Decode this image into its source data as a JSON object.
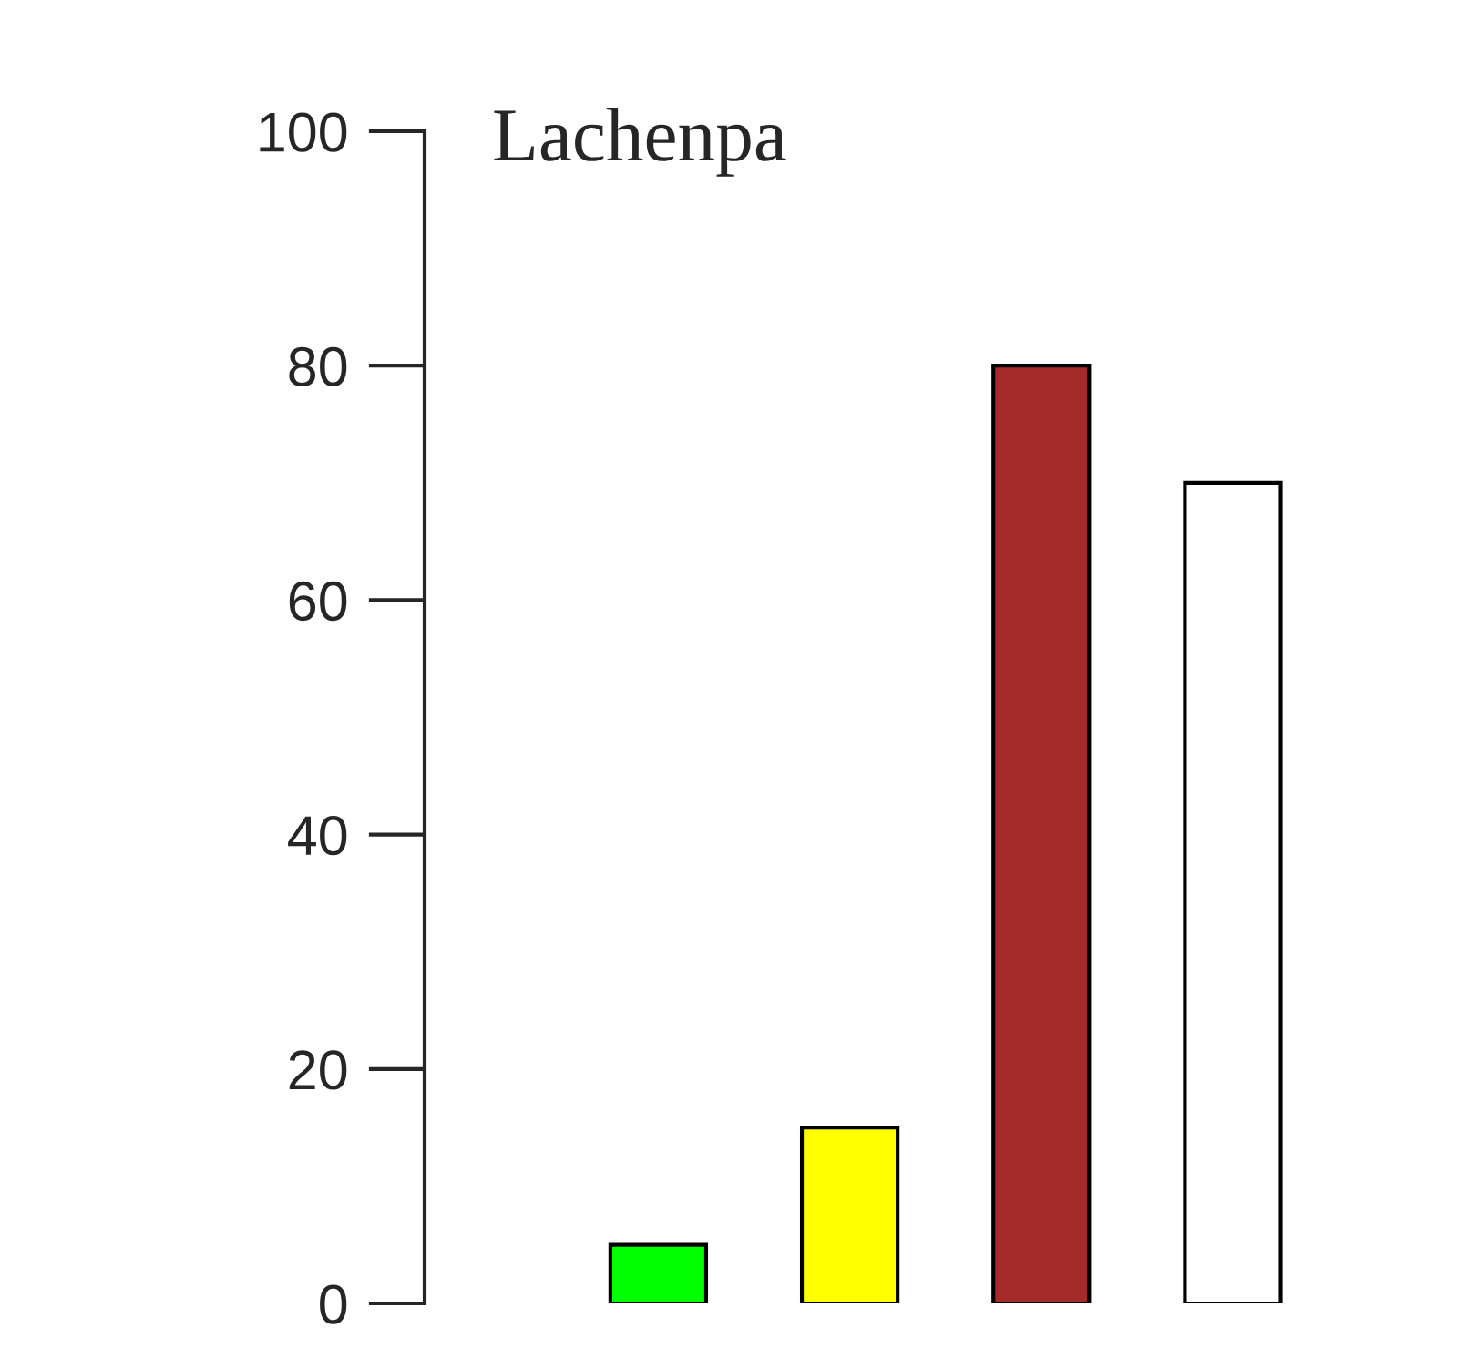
{
  "chart_data": {
    "type": "bar",
    "categories": [
      null,
      null,
      null,
      null
    ],
    "values": [
      5,
      15,
      80,
      70
    ],
    "colors": [
      "#00ff00",
      "#ffff00",
      "#a52a2a",
      "#ffffff"
    ],
    "ylim": [
      0,
      100
    ],
    "yticks": [
      0,
      20,
      40,
      60,
      80,
      100
    ],
    "tick_labels": "y",
    "grid": false,
    "annotations": [
      "Lachenpa"
    ]
  }
}
